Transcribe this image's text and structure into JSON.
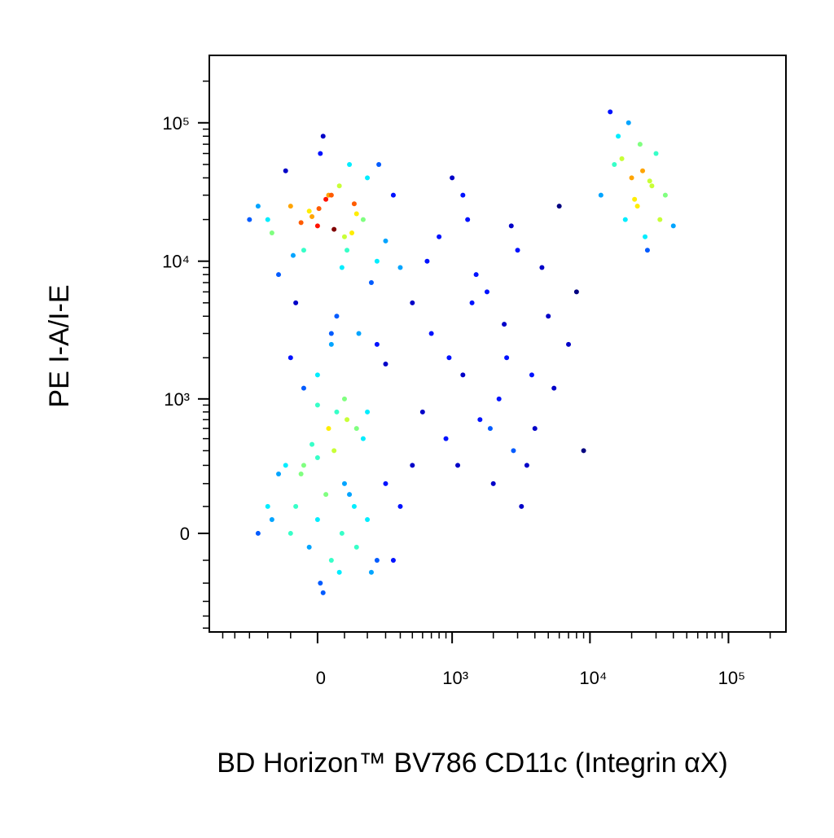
{
  "chart_data": {
    "type": "scatter",
    "x_label": "BD Horizon™ BV786 CD11c (Integrin αX)",
    "y_label": "PE I-A/I-E",
    "xscale": "biexponential",
    "yscale": "biexponential",
    "xlim": [
      -635,
      260000
    ],
    "ylim": [
      -536,
      307000
    ],
    "xticks": [
      0,
      {
        "value": 1000,
        "label": "10³"
      },
      {
        "value": 10000,
        "label": "10⁴"
      },
      {
        "value": 100000,
        "label": "10⁵"
      }
    ],
    "yticks": [
      0,
      {
        "value": 1000,
        "label": "10³"
      },
      {
        "value": 10000,
        "label": "10⁴"
      },
      {
        "value": 100000,
        "label": "10⁵"
      }
    ],
    "xminorticks": [
      -500,
      -400,
      -300,
      -200,
      -100,
      100,
      200,
      300,
      400,
      500,
      600,
      700,
      800,
      900,
      2000,
      3000,
      4000,
      5000,
      6000,
      7000,
      8000,
      9000,
      20000,
      30000,
      40000,
      50000,
      60000,
      70000,
      80000,
      90000,
      200000
    ],
    "yminorticks": [
      -500,
      -400,
      -300,
      -200,
      -100,
      100,
      200,
      300,
      400,
      500,
      600,
      700,
      800,
      900,
      2000,
      3000,
      4000,
      5000,
      6000,
      7000,
      8000,
      9000,
      20000,
      30000,
      40000,
      50000,
      60000,
      70000,
      80000,
      90000,
      200000
    ],
    "x": [
      -200,
      -100,
      0,
      50,
      100,
      150,
      200,
      -50,
      30,
      80,
      -150,
      120,
      250,
      -250,
      60,
      10,
      -80,
      180,
      300,
      -30,
      90,
      40,
      -120,
      220,
      140,
      -60,
      20,
      110,
      -180,
      70,
      350,
      -300,
      400,
      160,
      -20,
      5,
      130,
      -90,
      260,
      50,
      -200,
      -100,
      0,
      50,
      100,
      150,
      -50,
      30,
      80,
      -150,
      200,
      250,
      -250,
      60,
      10,
      -80,
      180,
      300,
      -30,
      90,
      40,
      -120,
      220,
      140,
      -60,
      20,
      110,
      400,
      -180,
      70,
      350,
      0,
      120,
      -20,
      500,
      0,
      100,
      -100,
      200,
      50,
      -50,
      150,
      300,
      0,
      250,
      700,
      900,
      1200,
      1500,
      2000,
      2500,
      3000,
      4000,
      5000,
      6000,
      800,
      1100,
      1800,
      2200,
      3500,
      4500,
      7000,
      600,
      1300,
      2800,
      1000,
      1600,
      2400,
      3200,
      5500,
      8000,
      650,
      950,
      1400,
      1900,
      2700,
      3800,
      9000,
      1200,
      500,
      12000,
      15000,
      18000,
      20000,
      22000,
      25000,
      28000,
      30000,
      35000,
      16000,
      19000,
      24000,
      26000,
      21000,
      14000,
      32000,
      17000,
      23000,
      27000,
      40000
    ],
    "y": [
      20000,
      25000,
      18000,
      30000,
      15000,
      22000,
      40000,
      12000,
      28000,
      35000,
      8000,
      50000,
      10000,
      25000,
      17000,
      60000,
      5000,
      20000,
      14000,
      23000,
      9000,
      30000,
      45000,
      7000,
      26000,
      19000,
      80000,
      12000,
      16000,
      4000,
      30000,
      20000,
      9000,
      3000,
      21000,
      24000,
      16000,
      11000,
      50000,
      2500,
      100,
      0,
      50,
      -100,
      200,
      -50,
      300,
      150,
      -150,
      250,
      50,
      -100,
      0,
      400,
      -200,
      100,
      500,
      200,
      -50,
      0,
      600,
      300,
      -150,
      100,
      250,
      -250,
      700,
      100,
      50,
      800,
      -100,
      350,
      150,
      450,
      300,
      1500,
      1000,
      2000,
      800,
      3000,
      1200,
      600,
      1800,
      900,
      2500,
      3000,
      500,
      1500,
      8000,
      200,
      2000,
      12000,
      600,
      4000,
      25000,
      15000,
      300,
      6000,
      1000,
      300,
      9000,
      2500,
      800,
      20000,
      400,
      40000,
      700,
      3500,
      100,
      1200,
      6000,
      10000,
      2000,
      5000,
      600,
      18000,
      1500,
      400,
      30000,
      5000,
      30000,
      50000,
      20000,
      40000,
      25000,
      15000,
      35000,
      60000,
      30000,
      80000,
      100000,
      45000,
      12000,
      28000,
      120000,
      20000,
      55000,
      70000,
      38000,
      18000
    ]
  }
}
